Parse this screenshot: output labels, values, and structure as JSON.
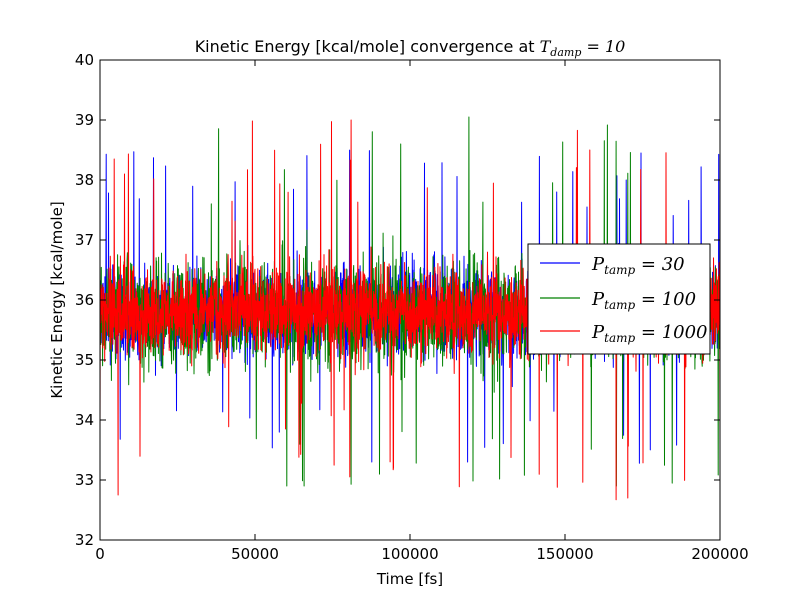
{
  "chart_data": {
    "type": "line",
    "title": {
      "text": "Kinetic Energy [kcal/mole] convergence at ",
      "math_symbol": "T",
      "math_sub": "damp",
      "math_rest": " = 10"
    },
    "xlabel": "Time [fs]",
    "ylabel": "Kinetic Energy [kcal/mole]",
    "xlim": [
      0,
      200000
    ],
    "ylim": [
      32,
      40
    ],
    "x_ticks": [
      0,
      50000,
      100000,
      150000,
      200000
    ],
    "y_ticks": [
      32,
      33,
      34,
      35,
      36,
      37,
      38,
      39,
      40
    ],
    "grid": false,
    "legend_position": "center-right",
    "series": [
      {
        "name": "P_tamp = 30",
        "label_symbol": "P",
        "label_sub": "tamp",
        "label_rest": " = 30",
        "color": "#0000ff",
        "mean": 35.8,
        "typical_min": 34.2,
        "typical_max": 37.4,
        "extreme_min": 33.3,
        "extreme_max": 38.5
      },
      {
        "name": "P_tamp = 100",
        "label_symbol": "P",
        "label_sub": "tamp",
        "label_rest": " = 100",
        "color": "#008000",
        "mean": 35.8,
        "typical_min": 34.0,
        "typical_max": 37.6,
        "extreme_min": 32.9,
        "extreme_max": 39.0
      },
      {
        "name": "P_tamp = 1000",
        "label_symbol": "P",
        "label_sub": "tamp",
        "label_rest": " = 1000",
        "color": "#ff0000",
        "mean": 35.8,
        "typical_min": 34.3,
        "typical_max": 37.3,
        "extreme_min": 32.7,
        "extreme_max": 39.0
      }
    ],
    "notable_points": [
      {
        "series": "P_tamp = 100",
        "x": 119000,
        "y": 39.05
      },
      {
        "series": "P_tamp = 1000",
        "x": 81000,
        "y": 39.0
      },
      {
        "series": "P_tamp = 100",
        "x": 81000,
        "y": 32.93
      },
      {
        "series": "P_tamp = 1000",
        "x": 166500,
        "y": 32.67
      },
      {
        "series": "P_tamp = 1000",
        "x": 147500,
        "y": 32.88
      },
      {
        "series": "P_tamp = 100",
        "x": 97000,
        "y": 38.6
      },
      {
        "series": "P_tamp = 30",
        "x": 174500,
        "y": 38.45
      },
      {
        "series": "P_tamp = 1000",
        "x": 158000,
        "y": 38.5
      },
      {
        "series": "P_tamp = 30",
        "x": 174000,
        "y": 33.28
      }
    ]
  }
}
